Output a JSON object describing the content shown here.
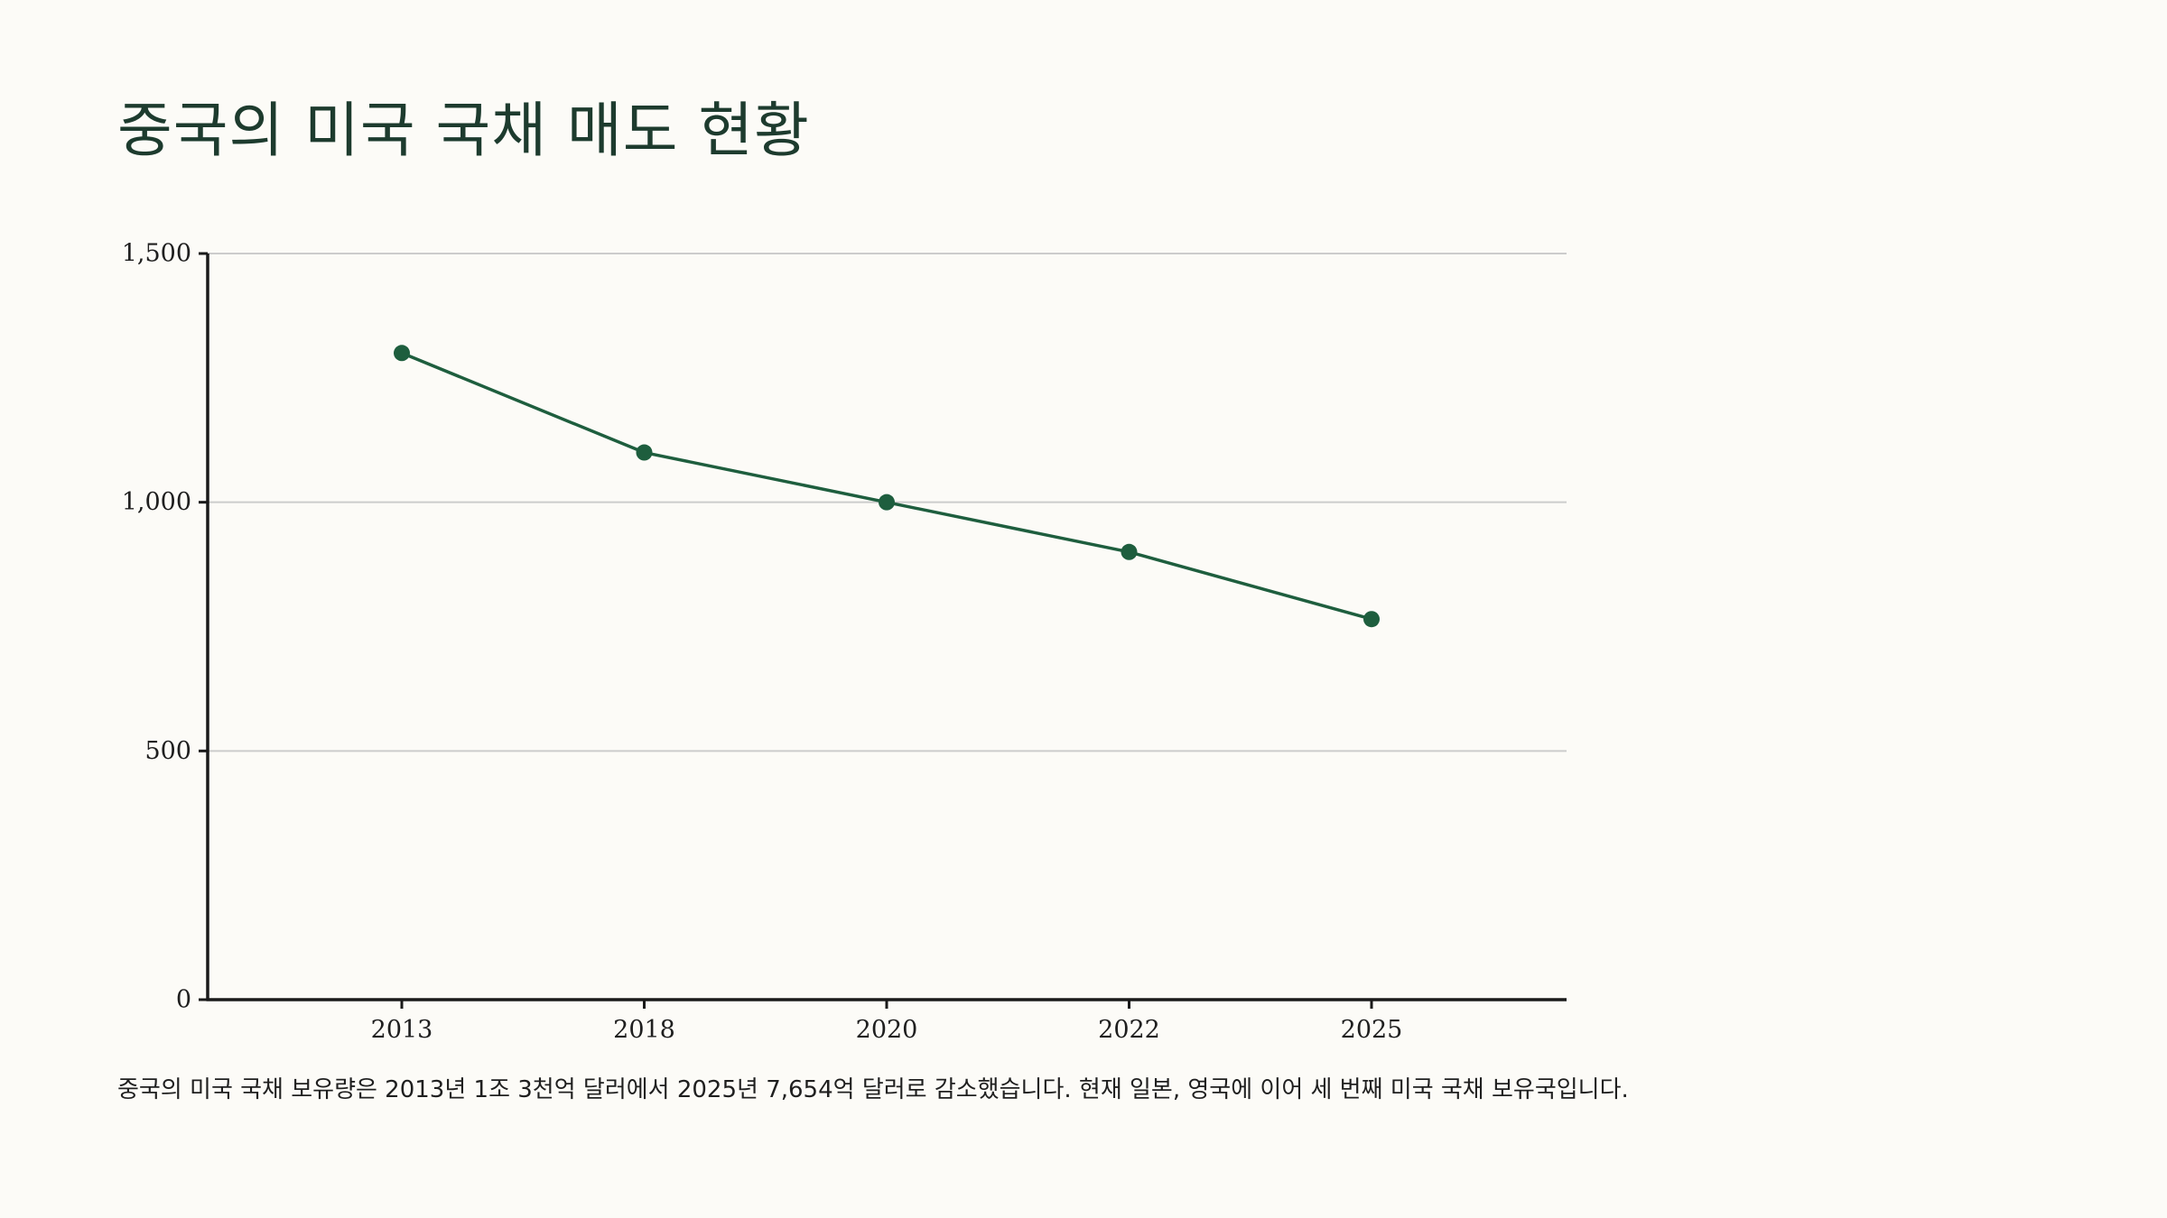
{
  "title": "중국의 미국 국채 매도 현황",
  "caption": "중국의 미국 국채 보유량은 2013년 1조 3천억 달러에서 2025년 7,654억 달러로 감소했습니다. 현재 일본, 영국에 이어 세 번째 미국 국채 보유국입니다.",
  "colors": {
    "background": "#fcfbf7",
    "title": "#1d3b2e",
    "line": "#1e5e3e",
    "grid": "#cccccc",
    "axis": "#1a1a1a"
  },
  "chart_data": {
    "type": "line",
    "title": "중국의 미국 국채 매도 현황",
    "xlabel": "",
    "ylabel": "",
    "categories": [
      "2013",
      "2018",
      "2020",
      "2022",
      "2025"
    ],
    "series": [
      {
        "values": [
          1300,
          1100,
          1000,
          900,
          765
        ]
      }
    ],
    "ylim": [
      0,
      1500
    ],
    "yticks": [
      0,
      500,
      1000,
      1500
    ],
    "ytick_labels": [
      "0",
      "500",
      "1,000",
      "1,500"
    ],
    "grid": true,
    "legend": "none"
  }
}
